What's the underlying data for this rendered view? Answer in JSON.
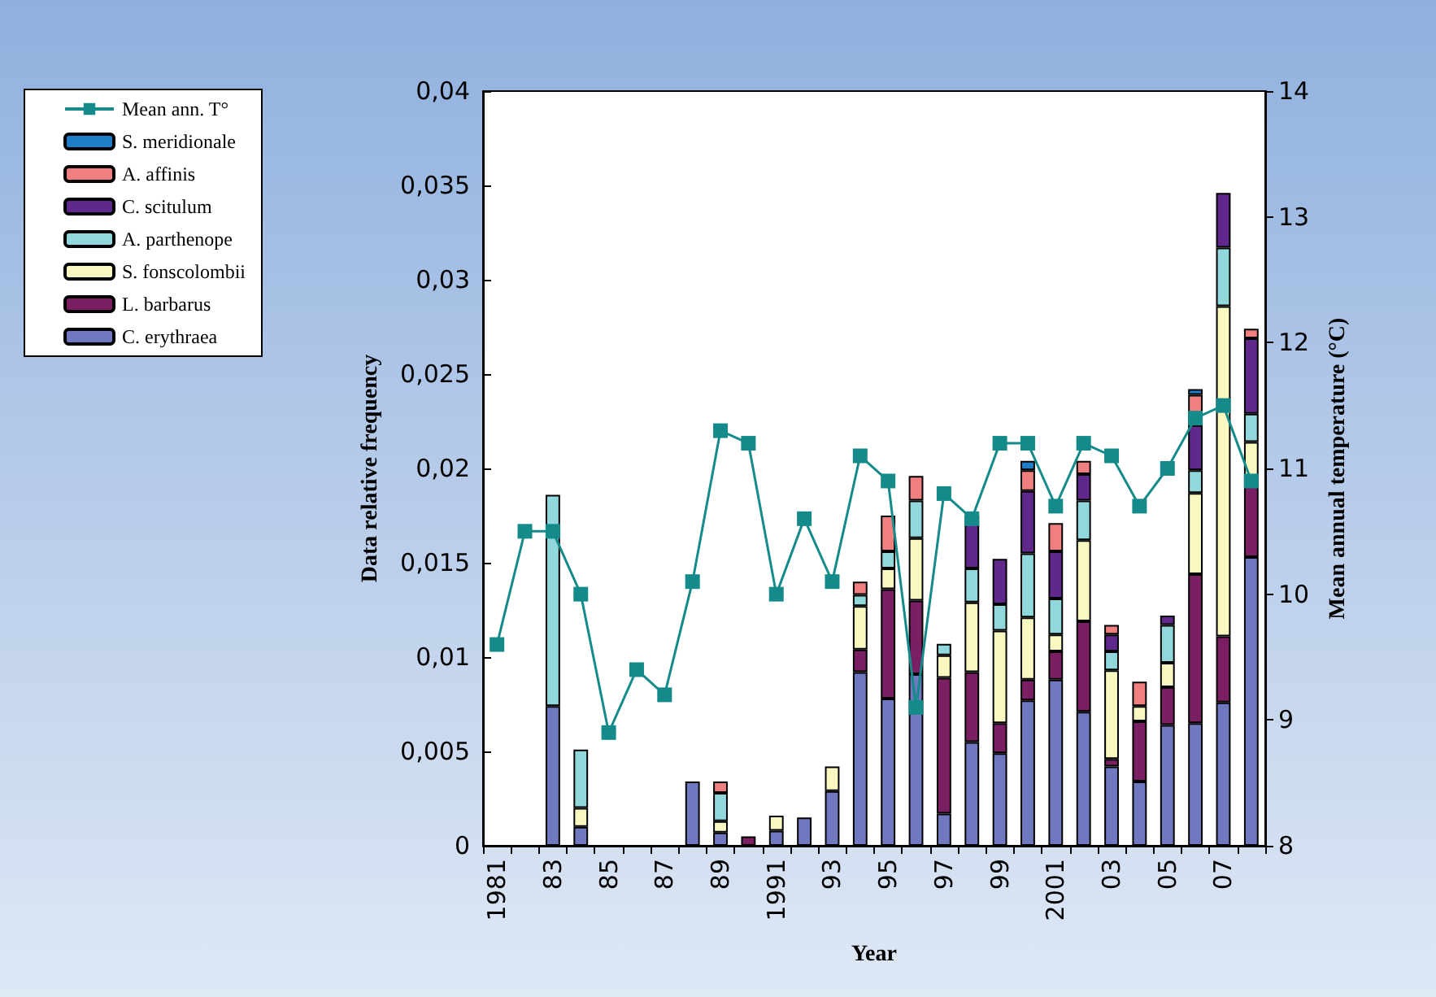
{
  "chart_data": {
    "type": "bar",
    "stacked": true,
    "xlabel": "Year",
    "ylabel": "Data relative frequency",
    "y2label": "Mean annual temperature (°C)",
    "categories": [
      "1981",
      null,
      "83",
      null,
      "85",
      null,
      "87",
      null,
      "89",
      null,
      "1991",
      null,
      "93",
      null,
      "95",
      null,
      "97",
      null,
      "99",
      null,
      "2001",
      null,
      "03",
      null,
      "05",
      null,
      "07",
      null
    ],
    "series": [
      {
        "name": "C. erythraea",
        "color": "#7078c0",
        "values": [
          null,
          null,
          0.0074,
          0.001,
          null,
          null,
          null,
          0.0034,
          0.0007,
          null,
          0.0008,
          0.0015,
          0.0029,
          0.0092,
          0.0078,
          0.0091,
          0.0017,
          0.0055,
          0.0049,
          0.0077,
          0.0088,
          0.0071,
          0.0042,
          0.0034,
          0.0064,
          0.0065,
          0.0076,
          0.0153
        ]
      },
      {
        "name": "L. barbarus",
        "color": "#7a1f62",
        "values": [
          null,
          null,
          null,
          null,
          null,
          null,
          null,
          null,
          null,
          0.0005,
          null,
          null,
          null,
          0.0012,
          0.0058,
          0.0039,
          0.0072,
          0.0037,
          0.0016,
          0.0011,
          0.0015,
          0.0048,
          0.0004,
          0.0032,
          0.002,
          0.0079,
          0.0035,
          0.004
        ]
      },
      {
        "name": "S. fonscolombii",
        "color": "#f8f8c0",
        "values": [
          null,
          null,
          null,
          0.001,
          null,
          null,
          null,
          null,
          0.0006,
          null,
          0.0008,
          null,
          0.0013,
          0.0023,
          0.0011,
          0.0033,
          0.0012,
          0.0037,
          0.0049,
          0.0033,
          0.0009,
          0.0043,
          0.0047,
          0.0008,
          0.0013,
          0.0043,
          0.0175,
          0.0021
        ]
      },
      {
        "name": "A. parthenope",
        "color": "#90d8dc",
        "values": [
          null,
          null,
          0.0112,
          0.0031,
          null,
          null,
          null,
          null,
          0.0015,
          null,
          null,
          null,
          null,
          0.0006,
          0.0009,
          0.002,
          0.0006,
          0.0018,
          0.0014,
          0.0034,
          0.0019,
          0.0021,
          0.001,
          null,
          0.002,
          0.0012,
          0.0031,
          0.0015
        ]
      },
      {
        "name": "C. scitulum",
        "color": "#60288a",
        "values": [
          null,
          null,
          null,
          null,
          null,
          null,
          null,
          null,
          null,
          null,
          null,
          null,
          null,
          null,
          null,
          null,
          null,
          0.0028,
          0.0024,
          0.0033,
          0.0025,
          0.0014,
          0.0009,
          null,
          0.0005,
          0.0024,
          0.0029,
          0.004
        ]
      },
      {
        "name": "A. affinis",
        "color": "#f08080",
        "values": [
          null,
          null,
          null,
          null,
          null,
          null,
          null,
          null,
          0.0006,
          null,
          null,
          null,
          null,
          0.0007,
          0.0019,
          0.0013,
          null,
          null,
          null,
          0.0011,
          0.0015,
          0.0007,
          0.0005,
          0.0013,
          null,
          0.0016,
          null,
          0.0005
        ]
      },
      {
        "name": "S. meridionale",
        "color": "#1e7fc8",
        "values": [
          null,
          null,
          null,
          null,
          null,
          null,
          null,
          null,
          null,
          null,
          null,
          null,
          null,
          null,
          null,
          null,
          null,
          null,
          null,
          0.0005,
          null,
          null,
          null,
          null,
          null,
          0.0003,
          null,
          null
        ]
      },
      {
        "name": "Mean ann. T°",
        "type": "line",
        "axis": "y2",
        "color": "#158a8a",
        "values": [
          9.6,
          10.5,
          10.5,
          10.0,
          8.9,
          9.4,
          9.2,
          10.1,
          11.3,
          11.2,
          10.0,
          10.6,
          10.1,
          11.1,
          10.9,
          9.1,
          10.8,
          10.6,
          11.2,
          11.2,
          10.7,
          11.2,
          11.1,
          10.7,
          11.0,
          11.4,
          11.5,
          10.9
        ]
      }
    ],
    "ylim": [
      0,
      0.04
    ],
    "yticks": [
      0,
      {
        "value": 0.005,
        "label": "0,005"
      },
      {
        "value": 0.01,
        "label": "0,01"
      },
      {
        "value": 0.015,
        "label": "0,015"
      },
      {
        "value": 0.02,
        "label": "0,02"
      },
      {
        "value": 0.025,
        "label": "0,025"
      },
      {
        "value": 0.03,
        "label": "0,03"
      },
      {
        "value": 0.035,
        "label": "0,035"
      },
      {
        "value": 0.04,
        "label": "0,04"
      }
    ],
    "y2lim": [
      8,
      14
    ],
    "y2ticks": [
      8,
      9,
      10,
      11,
      12,
      13,
      14
    ],
    "legend": "left",
    "marker": "square",
    "grid": false
  }
}
